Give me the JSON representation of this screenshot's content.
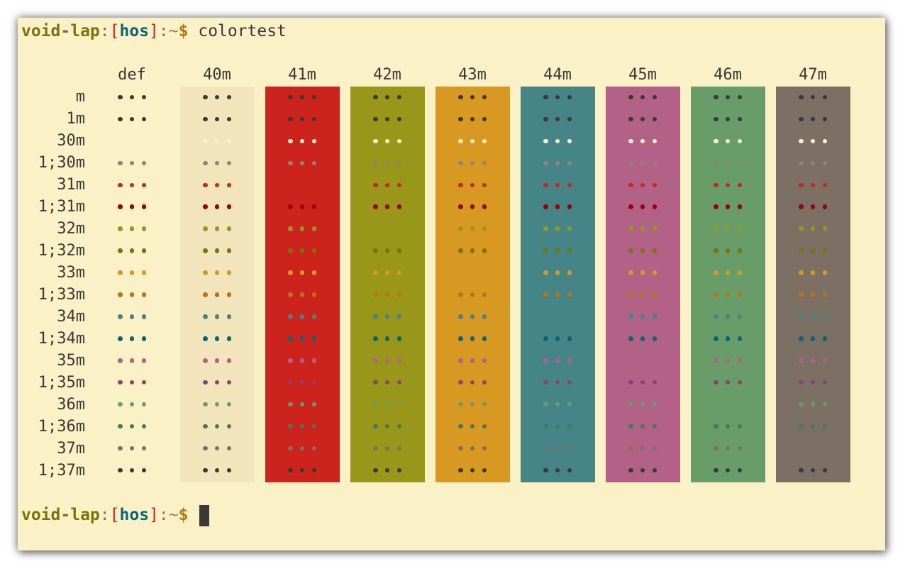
{
  "prompt": {
    "host": "void-lap",
    "colon": ":",
    "open_bracket": "[",
    "user": "hos",
    "close_bracket": "]",
    "colon2": ":",
    "path": "~",
    "dollar": "$",
    "command": "colortest"
  },
  "colortest": {
    "column_headers": [
      "def",
      "40m",
      "41m",
      "42m",
      "43m",
      "44m",
      "45m",
      "46m",
      "47m"
    ],
    "background_colors": [
      "#f2e5bc",
      "#cc241d",
      "#98971a",
      "#d79921",
      "#458588",
      "#b16286",
      "#689d6a",
      "#7c6f64"
    ],
    "rows": [
      {
        "label": "m",
        "color": "#3c3836"
      },
      {
        "label": "1m",
        "color": "#3c3836"
      },
      {
        "label": "30m",
        "color": "#fbf1c7"
      },
      {
        "label": "1;30m",
        "color": "#928374"
      },
      {
        "label": "31m",
        "color": "#cc241d"
      },
      {
        "label": "1;31m",
        "color": "#9d0006"
      },
      {
        "label": "32m",
        "color": "#98971a"
      },
      {
        "label": "1;32m",
        "color": "#79740e"
      },
      {
        "label": "33m",
        "color": "#d79921"
      },
      {
        "label": "1;33m",
        "color": "#b57614"
      },
      {
        "label": "34m",
        "color": "#458588"
      },
      {
        "label": "1;34m",
        "color": "#076678"
      },
      {
        "label": "35m",
        "color": "#b16286"
      },
      {
        "label": "1;35m",
        "color": "#8f3f71"
      },
      {
        "label": "36m",
        "color": "#689d6a"
      },
      {
        "label": "1;36m",
        "color": "#427b58"
      },
      {
        "label": "37m",
        "color": "#7c6f64"
      },
      {
        "label": "1;37m",
        "color": "#3c3836"
      }
    ],
    "dot_glyph": "•••"
  }
}
